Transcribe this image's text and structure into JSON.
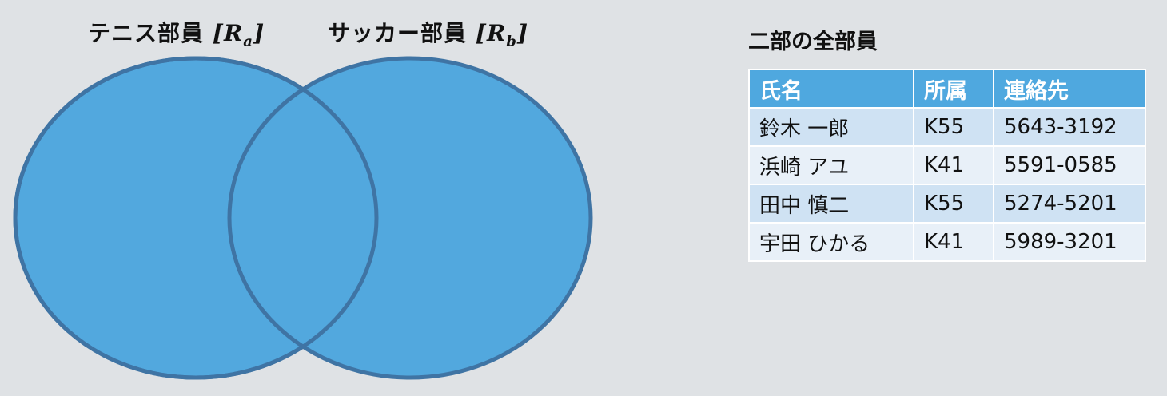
{
  "venn": {
    "set_a": {
      "name": "テニス部員",
      "symbol": "R",
      "subscript": "a"
    },
    "set_b": {
      "name": "サッカー部員",
      "symbol": "R",
      "subscript": "b"
    },
    "colors": {
      "fill": "#52a8de",
      "stroke": "#3f74a4"
    }
  },
  "table": {
    "title": "二部の全部員",
    "headers": [
      "氏名",
      "所属",
      "連絡先"
    ],
    "rows": [
      [
        "鈴木 一郎",
        "K55",
        "5643-3192"
      ],
      [
        "浜崎 アユ",
        "K41",
        "5591-0585"
      ],
      [
        "田中 慎二",
        "K55",
        "5274-5201"
      ],
      [
        "宇田 ひかる",
        "K41",
        "5989-3201"
      ]
    ],
    "colors": {
      "header": "#4fa8df",
      "row_odd": "#cfe2f3",
      "row_even": "#e8f0f8"
    }
  }
}
